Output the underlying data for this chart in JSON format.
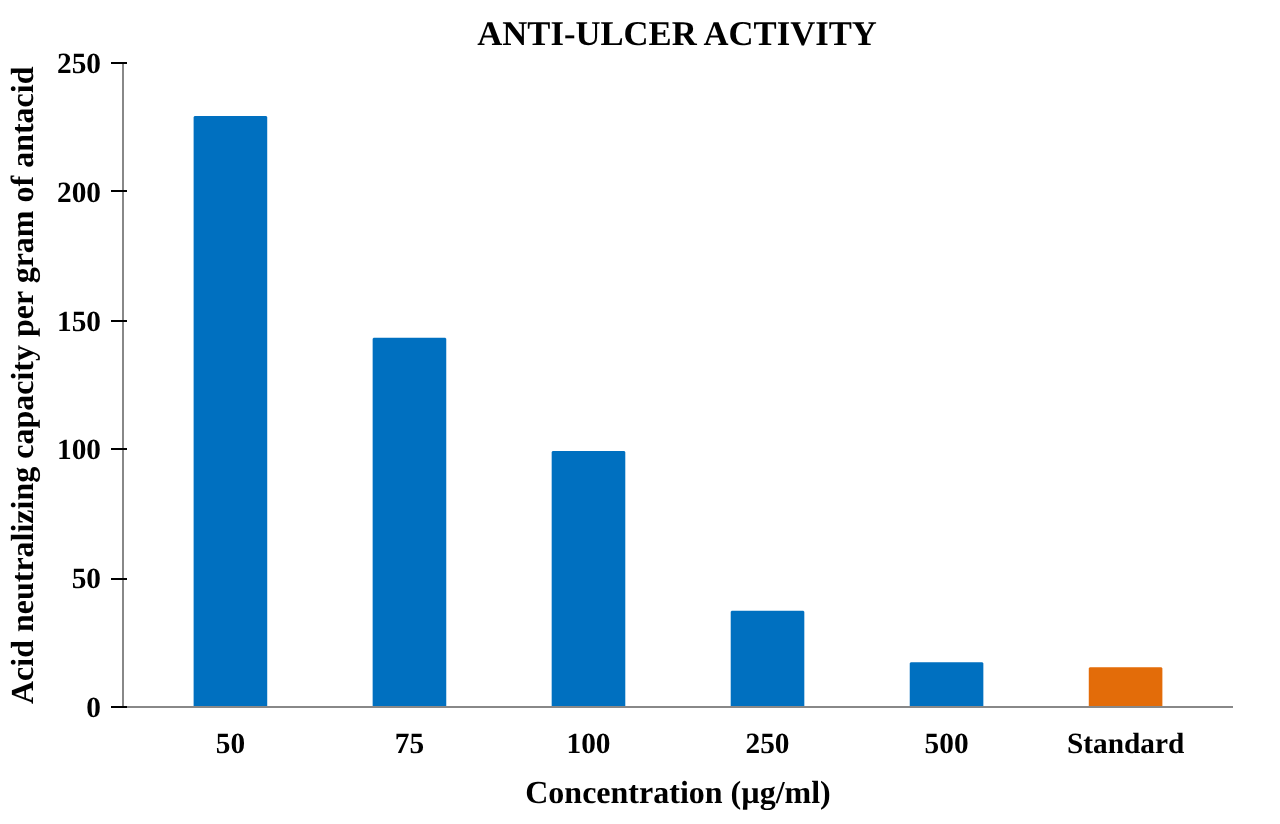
{
  "chart_data": {
    "type": "bar",
    "title": "ANTI-ULCER ACTIVITY",
    "xlabel": "Concentration (µg/ml)",
    "ylabel": "Acid neutralizing capacity per gram of antacid",
    "categories": [
      "50",
      "75",
      "100",
      "250",
      "500",
      "Standard"
    ],
    "values": [
      229,
      143,
      99,
      37,
      17,
      15
    ],
    "colors": [
      "#0070c0",
      "#0070c0",
      "#0070c0",
      "#0070c0",
      "#0070c0",
      "#e36c09"
    ],
    "ylim": [
      0,
      250
    ],
    "yticks": [
      0,
      50,
      100,
      150,
      200,
      250
    ],
    "grid": false
  }
}
